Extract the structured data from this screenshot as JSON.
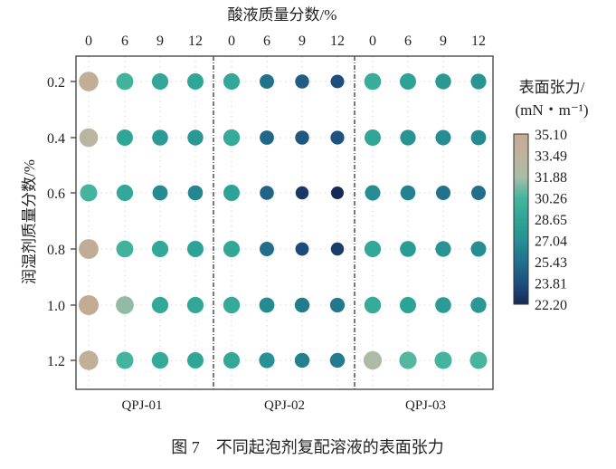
{
  "chart_data": {
    "type": "heatmap",
    "top_xlabel": "酸液质量分数/%",
    "ylabel": "润湿剂质量分数/%",
    "x_tick_labels": [
      "0",
      "6",
      "9",
      "12"
    ],
    "y_categories": [
      "0.2",
      "0.4",
      "0.6",
      "0.8",
      "1.0",
      "1.2"
    ],
    "groups": [
      {
        "name": "QPJ-01",
        "values": [
          [
            34.5,
            30.0,
            29.0,
            28.8
          ],
          [
            33.0,
            28.8,
            28.0,
            27.8
          ],
          [
            30.2,
            29.0,
            26.8,
            26.5
          ],
          [
            34.8,
            30.0,
            29.0,
            28.5
          ],
          [
            35.1,
            31.5,
            29.0,
            29.0
          ],
          [
            34.0,
            30.2,
            29.2,
            28.8
          ]
        ]
      },
      {
        "name": "QPJ-02",
        "values": [
          [
            29.0,
            25.5,
            24.5,
            23.8
          ],
          [
            29.2,
            25.0,
            24.3,
            24.0
          ],
          [
            28.5,
            24.8,
            22.8,
            22.2
          ],
          [
            29.0,
            25.3,
            23.6,
            23.0
          ],
          [
            29.2,
            26.8,
            26.0,
            25.8
          ],
          [
            29.0,
            27.2,
            26.2,
            26.0
          ]
        ]
      },
      {
        "name": "QPJ-03",
        "values": [
          [
            29.5,
            28.5,
            27.8,
            27.5
          ],
          [
            28.8,
            27.3,
            27.0,
            26.8
          ],
          [
            27.0,
            26.3,
            25.5,
            25.3
          ],
          [
            29.0,
            28.0,
            27.3,
            27.0
          ],
          [
            29.3,
            28.5,
            28.0,
            27.8
          ],
          [
            32.2,
            30.5,
            30.2,
            30.3
          ]
        ]
      }
    ],
    "colorbar": {
      "title_line1": "表面张力/",
      "title_line2": "(mN・m⁻¹)",
      "range": [
        22.2,
        35.1
      ],
      "tick_labels": [
        "35.10",
        "33.49",
        "31.88",
        "30.26",
        "28.65",
        "27.04",
        "25.43",
        "23.81",
        "22.20"
      ],
      "colors": [
        "#c2ab93",
        "#bfb39d",
        "#a9bca8",
        "#45b59c",
        "#2ea597",
        "#268f92",
        "#22718c",
        "#1d4f7e",
        "#172a55"
      ]
    },
    "grid": "dotted",
    "caption": "图 7　不同起泡剂复配溶液的表面张力"
  }
}
